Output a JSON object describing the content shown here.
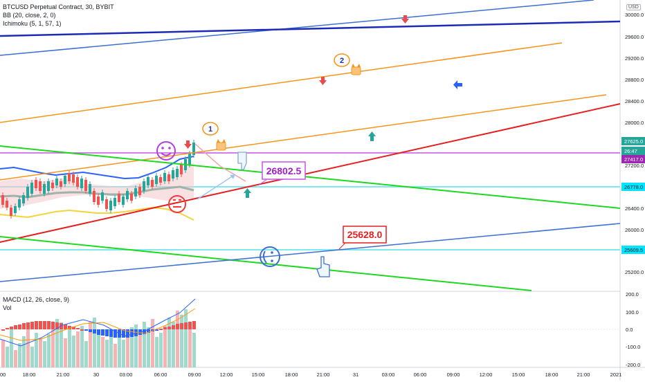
{
  "legend": {
    "title": "BTCUSD Perpetual Contract, 30, BYBIT",
    "bb": "BB (20, close, 2, 0)",
    "ichimoku": "Ichimoku (5, 1, 57, 1)"
  },
  "macd_legend": {
    "macd": "MACD (12, 26, close, 9)",
    "vol": "Vol"
  },
  "price_axis": {
    "currency": "USD",
    "ticks": [
      "30000.0",
      "29600.0",
      "29200.0",
      "28800.0",
      "28400.0",
      "28000.0",
      "27200.0",
      "26400.0",
      "26000.0",
      "25200.0"
    ],
    "tags": [
      {
        "text": "27625.0",
        "color": "#26a69a"
      },
      {
        "text": "26:47",
        "color": "#26a69a"
      },
      {
        "text": "27417.0",
        "color": "#9c27b0"
      },
      {
        "text": "26778.0",
        "color": "#00e5ff"
      },
      {
        "text": "25609.5",
        "color": "#00e5ff"
      }
    ]
  },
  "macd_axis": {
    "ticks": [
      "200.0",
      "100.0",
      "0.0",
      "-100.0",
      "-200.0"
    ]
  },
  "time_axis": {
    "labels": [
      "00",
      "18:00",
      "21:00",
      "30",
      "03:00",
      "06:00",
      "09:00",
      "12:00",
      "15:00",
      "18:00",
      "21:00",
      "31",
      "03:00",
      "06:00",
      "09:00",
      "12:00",
      "15:00",
      "18:00",
      "21:00",
      "2021"
    ]
  },
  "annotations": {
    "price_callout_1": "26802.5",
    "price_callout_2": "25628.0",
    "marker_1": "1",
    "marker_2": "2"
  },
  "colors": {
    "up": "#26a69a",
    "down": "#ef5350",
    "trend_red": "#e61e1e",
    "trend_orange": "#f7931a",
    "trend_green": "#1ed81e",
    "trend_blue": "#3b6fd4",
    "trend_navy": "#1c2bb5",
    "level_purple": "#c552e6",
    "level_cyan": "#7fe9f0"
  }
}
